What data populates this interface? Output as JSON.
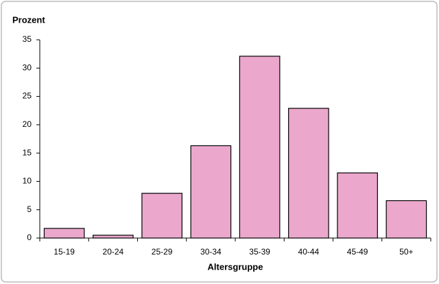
{
  "chart_data": {
    "type": "bar",
    "y_label": "Prozent",
    "x_label": "Altersgruppe",
    "categories": [
      "15-19",
      "20-24",
      "25-29",
      "30-34",
      "35-39",
      "40-44",
      "45-49",
      "50+"
    ],
    "values": [
      1.7,
      0.5,
      7.9,
      16.3,
      32.1,
      22.9,
      11.5,
      6.6
    ],
    "color": "#eba8cc",
    "ylim": [
      0,
      35
    ],
    "yticks": [
      0,
      5,
      10,
      15,
      20,
      25,
      30,
      35
    ],
    "grid": false
  }
}
